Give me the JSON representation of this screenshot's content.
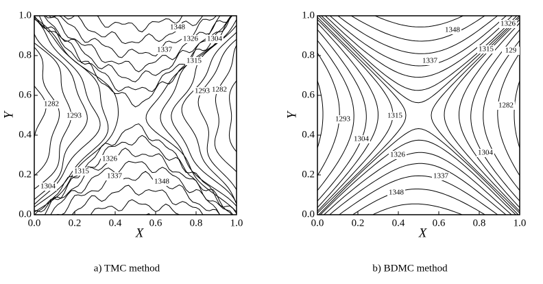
{
  "chart_data": [
    {
      "type": "contour",
      "caption": "a) TMC method",
      "xlabel": "X",
      "ylabel": "Y",
      "xlim": [
        0,
        1
      ],
      "ylim": [
        0,
        1
      ],
      "xticks": [
        {
          "value": 0,
          "label": "0.0"
        },
        0.2,
        0.4,
        0.6,
        0.8,
        {
          "value": 1,
          "label": "1.0"
        }
      ],
      "yticks": [
        {
          "value": 0,
          "label": "0.0"
        },
        0.2,
        0.4,
        0.6,
        0.8,
        {
          "value": 1,
          "label": "1.0"
        }
      ],
      "contour_labels": [
        1348,
        1326,
        1304,
        1337,
        1315,
        1293,
        1282,
        1282,
        1293,
        1326,
        1315,
        1337,
        1348,
        1304
      ]
    },
    {
      "type": "contour",
      "caption": "b) BDMC method",
      "xlabel": "X",
      "ylabel": "Y",
      "xlim": [
        0,
        1
      ],
      "ylim": [
        0,
        1
      ],
      "xticks": [
        {
          "value": 0,
          "label": "0.0"
        },
        0.2,
        0.4,
        0.6,
        0.8,
        {
          "value": 1,
          "label": "1.0"
        }
      ],
      "yticks": [
        {
          "value": 0,
          "label": "0.0"
        },
        0.2,
        0.4,
        0.6,
        0.8,
        {
          "value": 1,
          "label": "1.0"
        }
      ],
      "contour_labels": [
        1326,
        1348,
        1337,
        1315,
        129,
        1282,
        1293,
        1315,
        1304,
        1304,
        1326,
        1337,
        1348
      ]
    }
  ]
}
